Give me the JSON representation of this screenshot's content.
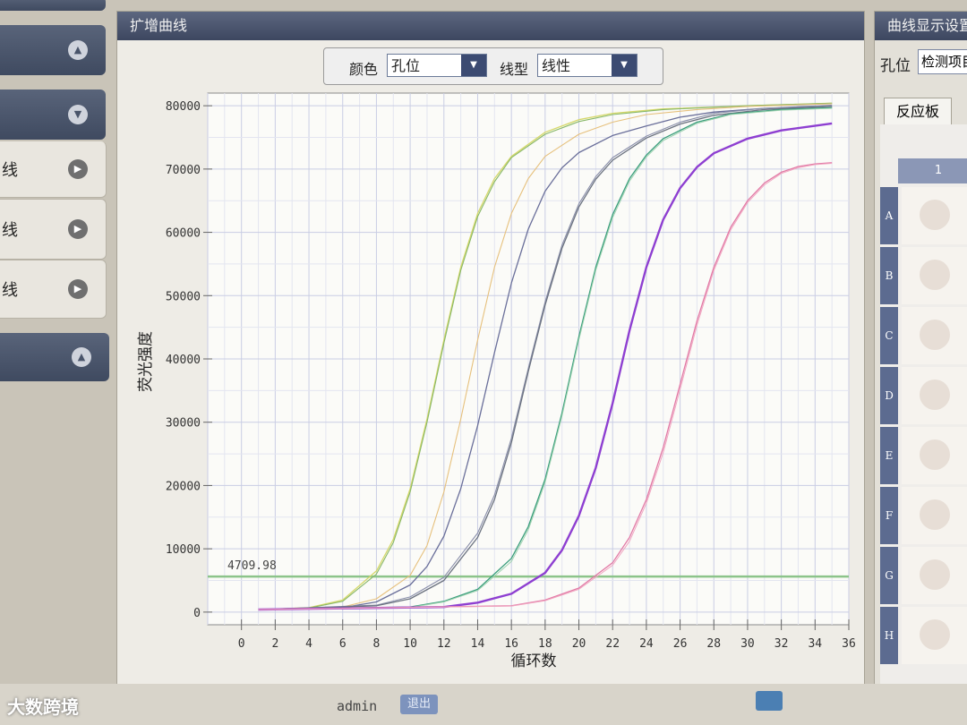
{
  "sidebar": {
    "items": [
      {
        "label": "",
        "icon": "chevron-up-icon",
        "style": "dark"
      },
      {
        "label": "",
        "icon": "chevron-down-icon",
        "style": "dark"
      },
      {
        "label": "线",
        "icon": "play-icon",
        "style": "light"
      },
      {
        "label": "线",
        "icon": "play-icon",
        "style": "light"
      },
      {
        "label": "线",
        "icon": "play-icon",
        "style": "light"
      },
      {
        "label": "",
        "icon": "chevron-up-icon",
        "style": "dark"
      }
    ]
  },
  "main": {
    "title": "扩增曲线",
    "toolbar": {
      "color_label": "颜色",
      "color_value": "孔位",
      "linetype_label": "线型",
      "linetype_value": "线性"
    }
  },
  "right_panel": {
    "title": "曲线显示设置",
    "well_label": "孔位",
    "well_select": "检测项目",
    "tab": "反应板",
    "column": "1",
    "rows": [
      "A",
      "B",
      "C",
      "D",
      "E",
      "F",
      "G",
      "H"
    ]
  },
  "footer": {
    "user": "admin",
    "logout": "退出",
    "watermark": "大数跨境"
  },
  "colors": {
    "title_bar": "#4a5570",
    "threshold": "#8cc48a",
    "plot_bg": "#fbfbf8"
  },
  "chart_data": {
    "type": "line",
    "title": "",
    "xlabel": "循环数",
    "ylabel": "荧光强度",
    "xlim": [
      -2,
      36
    ],
    "ylim": [
      -2000,
      82000
    ],
    "xticks": [
      0,
      2,
      4,
      6,
      8,
      10,
      12,
      14,
      16,
      18,
      20,
      22,
      24,
      26,
      28,
      30,
      32,
      34,
      36
    ],
    "yticks": [
      0,
      10000,
      20000,
      30000,
      40000,
      50000,
      60000,
      70000,
      80000
    ],
    "grid": true,
    "threshold": {
      "value": 4709.98,
      "label": "4709.98"
    },
    "series": [
      {
        "color": "#d6d86a",
        "width": 1.3,
        "points": [
          [
            1,
            400
          ],
          [
            4,
            700
          ],
          [
            6,
            1900
          ],
          [
            8,
            6500
          ],
          [
            9,
            11500
          ],
          [
            10,
            19500
          ],
          [
            11,
            30500
          ],
          [
            12,
            43000
          ],
          [
            13,
            54500
          ],
          [
            14,
            63000
          ],
          [
            15,
            68500
          ],
          [
            16,
            72000
          ],
          [
            18,
            75800
          ],
          [
            20,
            77800
          ],
          [
            22,
            78800
          ],
          [
            25,
            79500
          ],
          [
            30,
            80000
          ],
          [
            35,
            80400
          ]
        ]
      },
      {
        "color": "#88b868",
        "width": 1.1,
        "points": [
          [
            1,
            400
          ],
          [
            4,
            650
          ],
          [
            6,
            1700
          ],
          [
            8,
            6000
          ],
          [
            9,
            11000
          ],
          [
            10,
            19000
          ],
          [
            11,
            30000
          ],
          [
            12,
            42500
          ],
          [
            13,
            54000
          ],
          [
            14,
            62500
          ],
          [
            15,
            68000
          ],
          [
            16,
            71800
          ],
          [
            18,
            75500
          ],
          [
            20,
            77500
          ],
          [
            22,
            78600
          ],
          [
            25,
            79400
          ],
          [
            30,
            80000
          ],
          [
            35,
            80400
          ]
        ]
      },
      {
        "color": "#e6c07c",
        "width": 1.1,
        "points": [
          [
            1,
            400
          ],
          [
            6,
            800
          ],
          [
            8,
            2100
          ],
          [
            10,
            5800
          ],
          [
            11,
            10500
          ],
          [
            12,
            19000
          ],
          [
            13,
            30500
          ],
          [
            14,
            43000
          ],
          [
            15,
            54500
          ],
          [
            16,
            63000
          ],
          [
            17,
            68500
          ],
          [
            18,
            72000
          ],
          [
            20,
            75500
          ],
          [
            22,
            77400
          ],
          [
            24,
            78600
          ],
          [
            27,
            79400
          ],
          [
            30,
            79900
          ],
          [
            35,
            80300
          ]
        ]
      },
      {
        "color": "#6a6f9a",
        "width": 1.3,
        "points": [
          [
            1,
            400
          ],
          [
            6,
            700
          ],
          [
            8,
            1600
          ],
          [
            10,
            4300
          ],
          [
            11,
            7200
          ],
          [
            12,
            12000
          ],
          [
            13,
            19500
          ],
          [
            14,
            29500
          ],
          [
            15,
            41000
          ],
          [
            16,
            52000
          ],
          [
            17,
            60500
          ],
          [
            18,
            66500
          ],
          [
            19,
            70200
          ],
          [
            20,
            72600
          ],
          [
            22,
            75300
          ],
          [
            24,
            76800
          ],
          [
            26,
            78200
          ],
          [
            28,
            79000
          ],
          [
            31,
            79600
          ],
          [
            35,
            79900
          ]
        ]
      },
      {
        "color": "#8a8faa",
        "width": 1.1,
        "points": [
          [
            1,
            400
          ],
          [
            8,
            1100
          ],
          [
            10,
            2400
          ],
          [
            12,
            5500
          ],
          [
            14,
            12500
          ],
          [
            15,
            18500
          ],
          [
            16,
            27500
          ],
          [
            17,
            38500
          ],
          [
            18,
            49000
          ],
          [
            19,
            58000
          ],
          [
            20,
            64500
          ],
          [
            21,
            68800
          ],
          [
            22,
            71800
          ],
          [
            24,
            75200
          ],
          [
            26,
            77400
          ],
          [
            28,
            78800
          ],
          [
            31,
            79600
          ],
          [
            35,
            80100
          ]
        ]
      },
      {
        "color": "#6b7280",
        "width": 1.3,
        "points": [
          [
            1,
            400
          ],
          [
            8,
            1000
          ],
          [
            10,
            2100
          ],
          [
            12,
            5000
          ],
          [
            14,
            11800
          ],
          [
            15,
            17800
          ],
          [
            16,
            26800
          ],
          [
            17,
            38000
          ],
          [
            18,
            48500
          ],
          [
            19,
            57500
          ],
          [
            20,
            64000
          ],
          [
            21,
            68400
          ],
          [
            22,
            71400
          ],
          [
            24,
            74900
          ],
          [
            26,
            77100
          ],
          [
            28,
            78500
          ],
          [
            31,
            79400
          ],
          [
            35,
            79900
          ]
        ]
      },
      {
        "color": "#3a9e7c",
        "width": 1.3,
        "points": [
          [
            1,
            400
          ],
          [
            10,
            800
          ],
          [
            12,
            1700
          ],
          [
            14,
            3600
          ],
          [
            16,
            8500
          ],
          [
            17,
            13500
          ],
          [
            18,
            21000
          ],
          [
            19,
            31500
          ],
          [
            20,
            43500
          ],
          [
            21,
            54500
          ],
          [
            22,
            62800
          ],
          [
            23,
            68500
          ],
          [
            24,
            72200
          ],
          [
            25,
            74800
          ],
          [
            27,
            77400
          ],
          [
            29,
            78700
          ],
          [
            32,
            79400
          ],
          [
            35,
            79700
          ]
        ]
      },
      {
        "color": "#9fd2b0",
        "width": 1.0,
        "points": [
          [
            1,
            400
          ],
          [
            10,
            750
          ],
          [
            12,
            1600
          ],
          [
            14,
            3400
          ],
          [
            16,
            8000
          ],
          [
            17,
            13000
          ],
          [
            18,
            20500
          ],
          [
            19,
            31000
          ],
          [
            20,
            43000
          ],
          [
            21,
            54000
          ],
          [
            22,
            62300
          ],
          [
            23,
            68100
          ],
          [
            24,
            71900
          ],
          [
            25,
            74500
          ],
          [
            27,
            77200
          ],
          [
            29,
            78600
          ],
          [
            32,
            79300
          ],
          [
            35,
            79600
          ]
        ]
      },
      {
        "color": "#8e3fd1",
        "width": 2.4,
        "points": [
          [
            1,
            400
          ],
          [
            12,
            800
          ],
          [
            14,
            1500
          ],
          [
            16,
            2900
          ],
          [
            18,
            6200
          ],
          [
            19,
            9800
          ],
          [
            20,
            15200
          ],
          [
            21,
            22800
          ],
          [
            22,
            33000
          ],
          [
            23,
            44500
          ],
          [
            24,
            54500
          ],
          [
            25,
            62000
          ],
          [
            26,
            67000
          ],
          [
            27,
            70300
          ],
          [
            28,
            72500
          ],
          [
            30,
            74800
          ],
          [
            32,
            76100
          ],
          [
            35,
            77200
          ]
        ]
      },
      {
        "color": "#e27aa6",
        "width": 1.3,
        "points": [
          [
            1,
            400
          ],
          [
            16,
            1000
          ],
          [
            18,
            1900
          ],
          [
            20,
            3800
          ],
          [
            22,
            7800
          ],
          [
            23,
            11800
          ],
          [
            24,
            17800
          ],
          [
            25,
            26000
          ],
          [
            26,
            36000
          ],
          [
            27,
            46000
          ],
          [
            28,
            54500
          ],
          [
            29,
            60800
          ],
          [
            30,
            65000
          ],
          [
            31,
            67800
          ],
          [
            32,
            69500
          ],
          [
            33,
            70400
          ],
          [
            34,
            70800
          ],
          [
            35,
            71000
          ]
        ]
      },
      {
        "color": "#f0a5c0",
        "width": 1.0,
        "points": [
          [
            1,
            400
          ],
          [
            16,
            950
          ],
          [
            18,
            1800
          ],
          [
            20,
            3600
          ],
          [
            22,
            7400
          ],
          [
            23,
            11200
          ],
          [
            24,
            17200
          ],
          [
            25,
            25200
          ],
          [
            26,
            35200
          ],
          [
            27,
            45300
          ],
          [
            28,
            54000
          ],
          [
            29,
            60400
          ],
          [
            30,
            64700
          ],
          [
            31,
            67500
          ],
          [
            32,
            69300
          ],
          [
            33,
            70200
          ],
          [
            34,
            70700
          ],
          [
            35,
            70900
          ]
        ]
      }
    ]
  }
}
